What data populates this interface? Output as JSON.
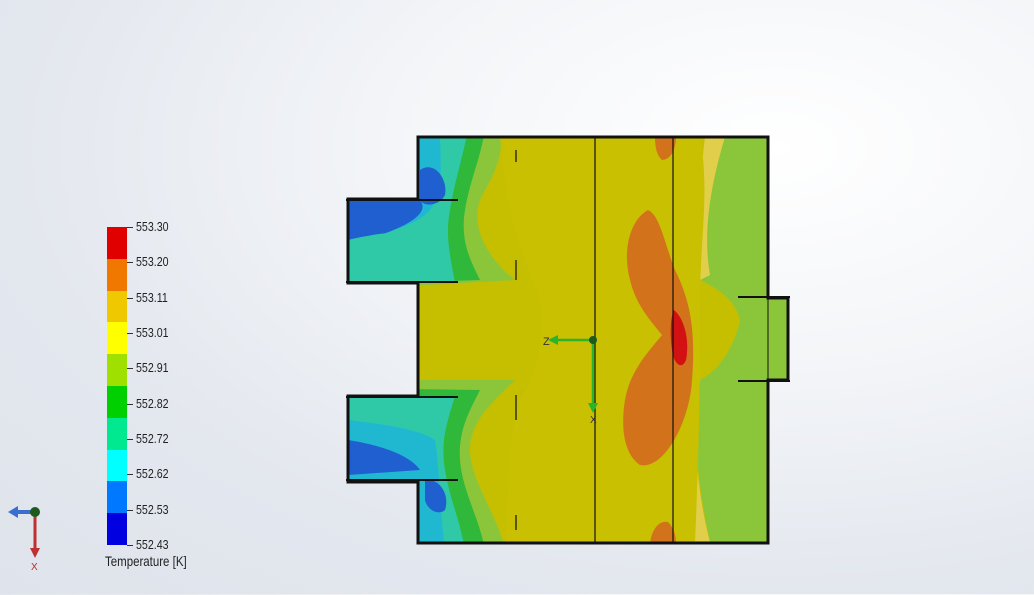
{
  "legend": {
    "title": "Temperature [K]",
    "ticks": [
      "553.30",
      "553.20",
      "553.11",
      "553.01",
      "552.91",
      "552.82",
      "552.72",
      "552.62",
      "552.53",
      "552.43"
    ],
    "colors": [
      "#e00000",
      "#f07800",
      "#f0c800",
      "#ffff00",
      "#a0e000",
      "#00d000",
      "#00e890",
      "#00ffff",
      "#0078ff",
      "#0000e0"
    ]
  },
  "triad_center": {
    "z_label": "Z",
    "x_label": "X"
  },
  "triad_corner": {
    "x_label": "X"
  },
  "contour_colors": {
    "orange": "#d2731c",
    "red": "#d21212",
    "yellow_olive": "#c8c000",
    "yellow": "#e1cf4b",
    "light_green": "#8bc63a",
    "green": "#2fb83a",
    "aqua": "#30c9a8",
    "cyan": "#20b8d0",
    "blue": "#1f5fcf"
  }
}
